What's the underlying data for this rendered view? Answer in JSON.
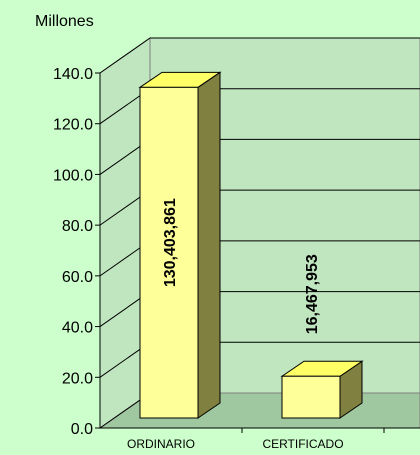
{
  "chart_data": {
    "type": "bar",
    "unit_label": "Millones",
    "categories": [
      "ORDINARIO",
      "CERTIFICADO"
    ],
    "values": [
      130.403861,
      16.467953
    ],
    "data_labels": [
      "130,403,861",
      "16,467,953"
    ],
    "ylim": [
      0,
      140
    ],
    "yticks": [
      0,
      20,
      40,
      60,
      80,
      100,
      120,
      140
    ],
    "ytick_labels": [
      "0.0",
      "20.0",
      "40.0",
      "60.0",
      "80.0",
      "100.0",
      "120.0",
      "140.0"
    ],
    "grid": true,
    "colors": {
      "background": "#ccffcc",
      "wall": "#c0e6c0",
      "floor": "#a0c8a0",
      "bar_front": "#ffff99",
      "bar_top": "#ffff66",
      "bar_side": "#808040",
      "grid": "#000000"
    }
  }
}
